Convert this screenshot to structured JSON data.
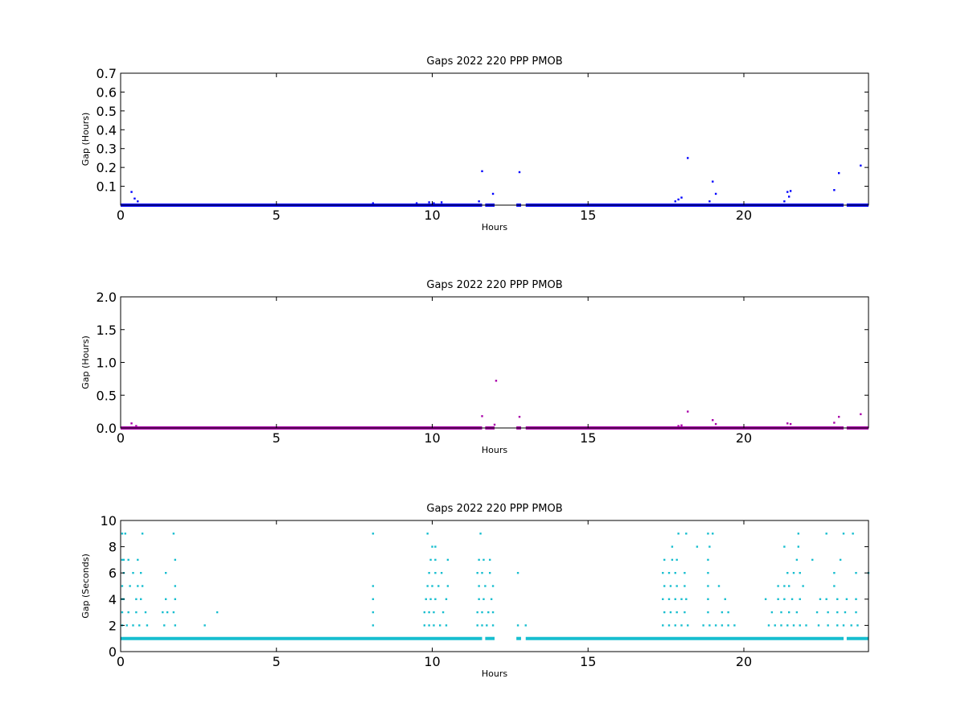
{
  "chart_data": [
    {
      "type": "scatter",
      "title": "Gaps 2022 220 PPP  PMOB",
      "xlabel": "Hours",
      "ylabel": "Gap (Hours)",
      "xlim": [
        0,
        24
      ],
      "ylim": [
        0,
        0.7
      ],
      "xticks": [
        "0",
        "5",
        "10",
        "15",
        "20"
      ],
      "yticks": [
        "0.1",
        "0.2",
        "0.3",
        "0.4",
        "0.5",
        "0.6",
        "0.7"
      ],
      "grid": false,
      "color": "#0000ff",
      "band": {
        "y": 0.0,
        "segments": [
          [
            0,
            11.6
          ],
          [
            11.7,
            12.0
          ],
          [
            12.7,
            12.85
          ],
          [
            13.0,
            23.2
          ],
          [
            23.3,
            24
          ]
        ]
      },
      "points": [
        {
          "x": 0.35,
          "y": 0.07
        },
        {
          "x": 0.45,
          "y": 0.035
        },
        {
          "x": 0.55,
          "y": 0.02
        },
        {
          "x": 8.1,
          "y": 0.01
        },
        {
          "x": 9.5,
          "y": 0.01
        },
        {
          "x": 9.9,
          "y": 0.015
        },
        {
          "x": 10.05,
          "y": 0.01
        },
        {
          "x": 10.3,
          "y": 0.015
        },
        {
          "x": 11.5,
          "y": 0.02
        },
        {
          "x": 11.6,
          "y": 0.18
        },
        {
          "x": 11.95,
          "y": 0.06
        },
        {
          "x": 12.8,
          "y": 0.175
        },
        {
          "x": 17.8,
          "y": 0.02
        },
        {
          "x": 17.9,
          "y": 0.03
        },
        {
          "x": 18.0,
          "y": 0.04
        },
        {
          "x": 18.2,
          "y": 0.25
        },
        {
          "x": 18.9,
          "y": 0.02
        },
        {
          "x": 19.0,
          "y": 0.125
        },
        {
          "x": 19.1,
          "y": 0.06
        },
        {
          "x": 21.3,
          "y": 0.02
        },
        {
          "x": 21.4,
          "y": 0.07
        },
        {
          "x": 21.5,
          "y": 0.075
        },
        {
          "x": 21.45,
          "y": 0.045
        },
        {
          "x": 22.9,
          "y": 0.08
        },
        {
          "x": 23.05,
          "y": 0.17
        },
        {
          "x": 23.75,
          "y": 0.21
        }
      ]
    },
    {
      "type": "scatter",
      "title": "Gaps 2022 220 PPP  PMOB",
      "xlabel": "Hours",
      "ylabel": "Gap (Hours)",
      "xlim": [
        0,
        24
      ],
      "ylim": [
        0,
        2.0
      ],
      "xticks": [
        "0",
        "5",
        "10",
        "15",
        "20"
      ],
      "yticks": [
        "0.0",
        "0.5",
        "1.0",
        "1.5",
        "2.0"
      ],
      "grid": false,
      "color": "#aa00aa",
      "band": {
        "y": 0.0,
        "segments": [
          [
            0,
            11.6
          ],
          [
            11.7,
            12.0
          ],
          [
            12.7,
            12.85
          ],
          [
            13.0,
            23.2
          ],
          [
            23.3,
            24
          ]
        ]
      },
      "points": [
        {
          "x": 0.35,
          "y": 0.07
        },
        {
          "x": 0.5,
          "y": 0.03
        },
        {
          "x": 11.6,
          "y": 0.18
        },
        {
          "x": 12.0,
          "y": 0.05
        },
        {
          "x": 12.05,
          "y": 0.72
        },
        {
          "x": 12.8,
          "y": 0.17
        },
        {
          "x": 17.9,
          "y": 0.03
        },
        {
          "x": 18.0,
          "y": 0.04
        },
        {
          "x": 18.2,
          "y": 0.25
        },
        {
          "x": 19.0,
          "y": 0.12
        },
        {
          "x": 19.1,
          "y": 0.06
        },
        {
          "x": 21.4,
          "y": 0.07
        },
        {
          "x": 21.5,
          "y": 0.06
        },
        {
          "x": 22.9,
          "y": 0.08
        },
        {
          "x": 23.05,
          "y": 0.17
        },
        {
          "x": 23.75,
          "y": 0.21
        }
      ]
    },
    {
      "type": "scatter",
      "title": "Gaps 2022 220 PPP  PMOB",
      "xlabel": "Hours",
      "ylabel": "Gap (Seconds)",
      "xlim": [
        0,
        24
      ],
      "ylim": [
        0,
        10
      ],
      "xticks": [
        "0",
        "5",
        "10",
        "15",
        "20"
      ],
      "yticks": [
        "0",
        "2",
        "4",
        "6",
        "8",
        "10"
      ],
      "grid": false,
      "color": "#17becf",
      "band": {
        "y": 1,
        "segments": [
          [
            0,
            11.6
          ],
          [
            11.7,
            12.0
          ],
          [
            12.7,
            12.85
          ],
          [
            13.0,
            23.2
          ],
          [
            23.3,
            24
          ]
        ]
      },
      "points": [
        {
          "x": 0.05,
          "y": 9
        },
        {
          "x": 0.15,
          "y": 9
        },
        {
          "x": 0.7,
          "y": 9
        },
        {
          "x": 1.7,
          "y": 9
        },
        {
          "x": 0.05,
          "y": 7
        },
        {
          "x": 0.1,
          "y": 7
        },
        {
          "x": 0.25,
          "y": 7
        },
        {
          "x": 0.55,
          "y": 7
        },
        {
          "x": 1.75,
          "y": 7
        },
        {
          "x": 0.1,
          "y": 6
        },
        {
          "x": 0.4,
          "y": 6
        },
        {
          "x": 0.65,
          "y": 6
        },
        {
          "x": 1.45,
          "y": 6
        },
        {
          "x": 0.05,
          "y": 5
        },
        {
          "x": 0.3,
          "y": 5
        },
        {
          "x": 0.55,
          "y": 5
        },
        {
          "x": 0.7,
          "y": 5
        },
        {
          "x": 1.75,
          "y": 5
        },
        {
          "x": 0.05,
          "y": 4
        },
        {
          "x": 0.1,
          "y": 4
        },
        {
          "x": 0.5,
          "y": 4
        },
        {
          "x": 0.65,
          "y": 4
        },
        {
          "x": 1.45,
          "y": 4
        },
        {
          "x": 1.75,
          "y": 4
        },
        {
          "x": 0.05,
          "y": 3
        },
        {
          "x": 0.25,
          "y": 3
        },
        {
          "x": 0.5,
          "y": 3
        },
        {
          "x": 0.8,
          "y": 3
        },
        {
          "x": 1.35,
          "y": 3
        },
        {
          "x": 1.5,
          "y": 3
        },
        {
          "x": 1.7,
          "y": 3
        },
        {
          "x": 3.1,
          "y": 3
        },
        {
          "x": 0.05,
          "y": 2
        },
        {
          "x": 0.2,
          "y": 2
        },
        {
          "x": 0.4,
          "y": 2
        },
        {
          "x": 0.6,
          "y": 2
        },
        {
          "x": 0.85,
          "y": 2
        },
        {
          "x": 1.4,
          "y": 2
        },
        {
          "x": 1.75,
          "y": 2
        },
        {
          "x": 2.7,
          "y": 2
        },
        {
          "x": 8.1,
          "y": 9
        },
        {
          "x": 8.1,
          "y": 5
        },
        {
          "x": 8.1,
          "y": 4
        },
        {
          "x": 8.1,
          "y": 3
        },
        {
          "x": 8.1,
          "y": 2
        },
        {
          "x": 9.85,
          "y": 9
        },
        {
          "x": 10.0,
          "y": 8
        },
        {
          "x": 10.1,
          "y": 8
        },
        {
          "x": 9.95,
          "y": 7
        },
        {
          "x": 10.1,
          "y": 7
        },
        {
          "x": 10.5,
          "y": 7
        },
        {
          "x": 9.9,
          "y": 6
        },
        {
          "x": 10.1,
          "y": 6
        },
        {
          "x": 10.3,
          "y": 6
        },
        {
          "x": 9.85,
          "y": 5
        },
        {
          "x": 10.0,
          "y": 5
        },
        {
          "x": 10.2,
          "y": 5
        },
        {
          "x": 10.5,
          "y": 5
        },
        {
          "x": 9.8,
          "y": 4
        },
        {
          "x": 9.95,
          "y": 4
        },
        {
          "x": 10.1,
          "y": 4
        },
        {
          "x": 10.45,
          "y": 4
        },
        {
          "x": 9.75,
          "y": 3
        },
        {
          "x": 9.9,
          "y": 3
        },
        {
          "x": 10.05,
          "y": 3
        },
        {
          "x": 10.35,
          "y": 3
        },
        {
          "x": 9.75,
          "y": 2
        },
        {
          "x": 9.9,
          "y": 2
        },
        {
          "x": 10.05,
          "y": 2
        },
        {
          "x": 10.25,
          "y": 2
        },
        {
          "x": 10.45,
          "y": 2
        },
        {
          "x": 11.55,
          "y": 9
        },
        {
          "x": 11.5,
          "y": 7
        },
        {
          "x": 11.65,
          "y": 7
        },
        {
          "x": 11.85,
          "y": 7
        },
        {
          "x": 11.45,
          "y": 6
        },
        {
          "x": 11.6,
          "y": 6
        },
        {
          "x": 11.85,
          "y": 6
        },
        {
          "x": 11.5,
          "y": 5
        },
        {
          "x": 11.7,
          "y": 5
        },
        {
          "x": 11.95,
          "y": 5
        },
        {
          "x": 11.5,
          "y": 4
        },
        {
          "x": 11.65,
          "y": 4
        },
        {
          "x": 11.9,
          "y": 4
        },
        {
          "x": 11.45,
          "y": 3
        },
        {
          "x": 11.6,
          "y": 3
        },
        {
          "x": 11.8,
          "y": 3
        },
        {
          "x": 11.95,
          "y": 3
        },
        {
          "x": 11.45,
          "y": 2
        },
        {
          "x": 11.6,
          "y": 2
        },
        {
          "x": 11.75,
          "y": 2
        },
        {
          "x": 11.95,
          "y": 2
        },
        {
          "x": 12.75,
          "y": 6
        },
        {
          "x": 12.75,
          "y": 2
        },
        {
          "x": 13.0,
          "y": 2
        },
        {
          "x": 17.9,
          "y": 9
        },
        {
          "x": 18.15,
          "y": 9
        },
        {
          "x": 18.85,
          "y": 9
        },
        {
          "x": 19.0,
          "y": 9
        },
        {
          "x": 17.7,
          "y": 8
        },
        {
          "x": 18.5,
          "y": 8
        },
        {
          "x": 18.9,
          "y": 8
        },
        {
          "x": 17.45,
          "y": 7
        },
        {
          "x": 17.7,
          "y": 7
        },
        {
          "x": 17.85,
          "y": 7
        },
        {
          "x": 18.85,
          "y": 7
        },
        {
          "x": 17.4,
          "y": 6
        },
        {
          "x": 17.6,
          "y": 6
        },
        {
          "x": 17.8,
          "y": 6
        },
        {
          "x": 18.1,
          "y": 6
        },
        {
          "x": 18.85,
          "y": 6
        },
        {
          "x": 17.45,
          "y": 5
        },
        {
          "x": 17.65,
          "y": 5
        },
        {
          "x": 17.85,
          "y": 5
        },
        {
          "x": 18.1,
          "y": 5
        },
        {
          "x": 18.85,
          "y": 5
        },
        {
          "x": 19.2,
          "y": 5
        },
        {
          "x": 17.4,
          "y": 4
        },
        {
          "x": 17.6,
          "y": 4
        },
        {
          "x": 17.8,
          "y": 4
        },
        {
          "x": 18.0,
          "y": 4
        },
        {
          "x": 18.15,
          "y": 4
        },
        {
          "x": 18.85,
          "y": 4
        },
        {
          "x": 19.4,
          "y": 4
        },
        {
          "x": 17.45,
          "y": 3
        },
        {
          "x": 17.65,
          "y": 3
        },
        {
          "x": 17.85,
          "y": 3
        },
        {
          "x": 18.1,
          "y": 3
        },
        {
          "x": 18.85,
          "y": 3
        },
        {
          "x": 19.3,
          "y": 3
        },
        {
          "x": 19.5,
          "y": 3
        },
        {
          "x": 17.4,
          "y": 2
        },
        {
          "x": 17.6,
          "y": 2
        },
        {
          "x": 17.8,
          "y": 2
        },
        {
          "x": 18.0,
          "y": 2
        },
        {
          "x": 18.2,
          "y": 2
        },
        {
          "x": 18.7,
          "y": 2
        },
        {
          "x": 18.9,
          "y": 2
        },
        {
          "x": 19.1,
          "y": 2
        },
        {
          "x": 19.3,
          "y": 2
        },
        {
          "x": 19.5,
          "y": 2
        },
        {
          "x": 19.7,
          "y": 2
        },
        {
          "x": 21.75,
          "y": 9
        },
        {
          "x": 22.65,
          "y": 9
        },
        {
          "x": 23.2,
          "y": 9
        },
        {
          "x": 23.5,
          "y": 9
        },
        {
          "x": 21.3,
          "y": 8
        },
        {
          "x": 21.75,
          "y": 8
        },
        {
          "x": 21.7,
          "y": 7
        },
        {
          "x": 22.2,
          "y": 7
        },
        {
          "x": 23.1,
          "y": 7
        },
        {
          "x": 21.4,
          "y": 6
        },
        {
          "x": 21.6,
          "y": 6
        },
        {
          "x": 21.8,
          "y": 6
        },
        {
          "x": 22.9,
          "y": 6
        },
        {
          "x": 23.6,
          "y": 6
        },
        {
          "x": 24.0,
          "y": 6
        },
        {
          "x": 21.1,
          "y": 5
        },
        {
          "x": 21.3,
          "y": 5
        },
        {
          "x": 21.45,
          "y": 5
        },
        {
          "x": 21.9,
          "y": 5
        },
        {
          "x": 22.9,
          "y": 5
        },
        {
          "x": 20.7,
          "y": 4
        },
        {
          "x": 21.1,
          "y": 4
        },
        {
          "x": 21.3,
          "y": 4
        },
        {
          "x": 21.55,
          "y": 4
        },
        {
          "x": 21.8,
          "y": 4
        },
        {
          "x": 22.45,
          "y": 4
        },
        {
          "x": 22.65,
          "y": 4
        },
        {
          "x": 23.0,
          "y": 4
        },
        {
          "x": 23.3,
          "y": 4
        },
        {
          "x": 23.6,
          "y": 4
        },
        {
          "x": 20.9,
          "y": 3
        },
        {
          "x": 21.2,
          "y": 3
        },
        {
          "x": 21.45,
          "y": 3
        },
        {
          "x": 21.7,
          "y": 3
        },
        {
          "x": 22.35,
          "y": 3
        },
        {
          "x": 22.7,
          "y": 3
        },
        {
          "x": 23.0,
          "y": 3
        },
        {
          "x": 23.25,
          "y": 3
        },
        {
          "x": 23.6,
          "y": 3
        },
        {
          "x": 20.8,
          "y": 2
        },
        {
          "x": 21.0,
          "y": 2
        },
        {
          "x": 21.2,
          "y": 2
        },
        {
          "x": 21.4,
          "y": 2
        },
        {
          "x": 21.6,
          "y": 2
        },
        {
          "x": 21.8,
          "y": 2
        },
        {
          "x": 22.0,
          "y": 2
        },
        {
          "x": 22.4,
          "y": 2
        },
        {
          "x": 22.7,
          "y": 2
        },
        {
          "x": 23.0,
          "y": 2
        },
        {
          "x": 23.2,
          "y": 2
        },
        {
          "x": 23.45,
          "y": 2
        },
        {
          "x": 23.65,
          "y": 2
        }
      ]
    }
  ]
}
